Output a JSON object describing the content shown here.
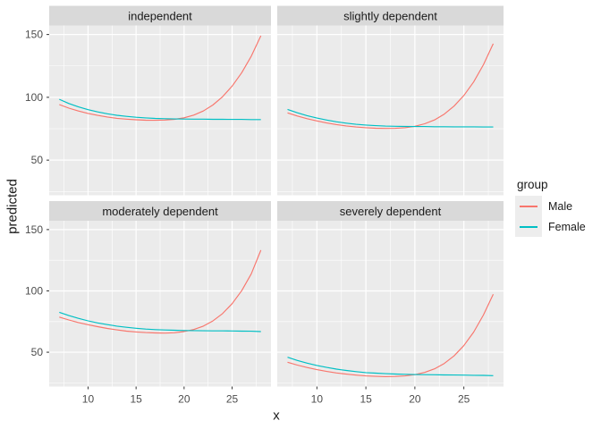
{
  "chart_data": {
    "type": "line",
    "xlabel": "x",
    "ylabel": "predicted",
    "x_ticks": [
      10,
      15,
      20,
      25
    ],
    "y_ticks": [
      50,
      100,
      150
    ],
    "x_minor": [
      7.5,
      12.5,
      17.5,
      22.5,
      27.5
    ],
    "y_minor": [
      25,
      75,
      125
    ],
    "xlim": [
      5.95,
      29.05
    ],
    "ylim": [
      22,
      157.2
    ],
    "grid": true,
    "legend_position": "right",
    "x": [
      7,
      8,
      9,
      10,
      11,
      12,
      13,
      14,
      15,
      16,
      17,
      18,
      19,
      20,
      21,
      22,
      23,
      24,
      25,
      26,
      27,
      28
    ],
    "facets": [
      {
        "label": "independent",
        "row": 0,
        "col": 0,
        "series": [
          {
            "name": "Male",
            "values": [
              94.2,
              91.4,
              89.1,
              87.2,
              85.6,
              84.3,
              83.3,
              82.6,
              82.1,
              81.8,
              81.7,
              81.9,
              82.5,
              83.7,
              85.8,
              89.1,
              93.9,
              100.4,
              108.9,
              119.6,
              132.8,
              149.0
            ]
          },
          {
            "name": "Female",
            "values": [
              98.4,
              95.1,
              92.4,
              90.2,
              88.4,
              86.9,
              85.7,
              84.8,
              84.1,
              83.6,
              83.2,
              83.0,
              82.8,
              82.7,
              82.6,
              82.6,
              82.5,
              82.5,
              82.4,
              82.4,
              82.3,
              82.3
            ]
          }
        ]
      },
      {
        "label": "slightly dependent",
        "row": 0,
        "col": 1,
        "series": [
          {
            "name": "Male",
            "values": [
              87.6,
              85.1,
              83.0,
              81.2,
              79.6,
              78.3,
              77.2,
              76.4,
              75.8,
              75.4,
              75.2,
              75.3,
              75.8,
              76.9,
              78.9,
              82.0,
              86.6,
              93.0,
              101.4,
              112.2,
              125.9,
              142.7
            ]
          },
          {
            "name": "Female",
            "values": [
              90.4,
              87.7,
              85.4,
              83.5,
              81.9,
              80.5,
              79.4,
              78.5,
              77.9,
              77.4,
              77.1,
              76.9,
              76.8,
              76.7,
              76.7,
              76.6,
              76.6,
              76.5,
              76.5,
              76.5,
              76.4,
              76.4
            ]
          }
        ]
      },
      {
        "label": "moderately dependent",
        "row": 1,
        "col": 0,
        "series": [
          {
            "name": "Male",
            "values": [
              78.6,
              76.3,
              74.2,
              72.4,
              70.8,
              69.4,
              68.2,
              67.2,
              66.5,
              66.0,
              65.7,
              65.6,
              65.9,
              66.8,
              68.5,
              71.3,
              75.5,
              81.5,
              89.6,
              100.2,
              114.0,
              133.2
            ]
          },
          {
            "name": "Female",
            "values": [
              82.6,
              79.9,
              77.6,
              75.6,
              73.9,
              72.5,
              71.3,
              70.3,
              69.5,
              68.9,
              68.4,
              68.1,
              67.9,
              67.7,
              67.6,
              67.5,
              67.4,
              67.4,
              67.3,
              67.2,
              67.1,
              66.8
            ]
          }
        ]
      },
      {
        "label": "severely dependent",
        "row": 1,
        "col": 1,
        "series": [
          {
            "name": "Male",
            "values": [
              41.8,
              39.5,
              37.5,
              35.8,
              34.3,
              33.1,
              32.1,
              31.3,
              30.7,
              30.3,
              30.1,
              30.2,
              30.7,
              31.7,
              33.5,
              36.4,
              40.8,
              47.0,
              55.4,
              66.4,
              80.3,
              97.2
            ]
          },
          {
            "name": "Female",
            "values": [
              45.9,
              43.3,
              41.1,
              39.2,
              37.6,
              36.2,
              35.1,
              34.2,
              33.4,
              32.9,
              32.5,
              32.2,
              32.0,
              31.8,
              31.7,
              31.6,
              31.5,
              31.4,
              31.3,
              31.2,
              31.1,
              30.9
            ]
          }
        ]
      }
    ],
    "legend": {
      "title": "group",
      "entries": [
        {
          "label": "Male",
          "color": "#F8766D"
        },
        {
          "label": "Female",
          "color": "#00BFC4"
        }
      ]
    },
    "series_colors": {
      "Male": "#F8766D",
      "Female": "#00BFC4"
    }
  },
  "theme": {
    "background": "#FFFFFF",
    "panel_bg": "#EBEBEB",
    "strip_bg": "#D9D9D9",
    "grid_color": "#FFFFFF",
    "tick_mark_color": "#333333",
    "tick_label_color": "#4D4D4D",
    "strip_text_color": "#1A1A1A",
    "title_color": "#1A1A1A"
  }
}
